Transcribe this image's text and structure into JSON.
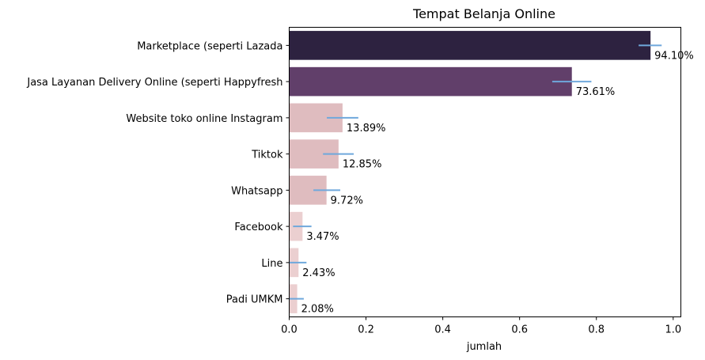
{
  "chart_data": {
    "type": "bar",
    "orientation": "horizontal",
    "title": "Tempat Belanja Online",
    "xlabel": "jumlah",
    "ylabel": "",
    "xlim": [
      0,
      1.02
    ],
    "xticks": [
      "0.0",
      "0.2",
      "0.4",
      "0.6",
      "0.8",
      "1.0"
    ],
    "grid": false,
    "categories": [
      "Marketplace (seperti Lazada",
      "Jasa Layanan Delivery Online (seperti Happyfresh",
      "Website toko online Instagram",
      "Tiktok",
      "Whatsapp",
      "Facebook",
      "Line",
      "Padi UMKM"
    ],
    "values": [
      0.941,
      0.7361,
      0.1389,
      0.1285,
      0.0972,
      0.0347,
      0.0243,
      0.0208
    ],
    "data_labels": [
      "94.10%",
      "73.61%",
      "13.89%",
      "12.85%",
      "9.72%",
      "3.47%",
      "2.43%",
      "2.08%"
    ],
    "error_bars": [
      [
        0.91,
        0.97
      ],
      [
        0.685,
        0.787
      ],
      [
        0.098,
        0.18
      ],
      [
        0.088,
        0.168
      ],
      [
        0.063,
        0.133
      ],
      [
        0.01,
        0.058
      ],
      [
        0.0,
        0.045
      ],
      [
        0.0,
        0.038
      ]
    ],
    "bar_colors": [
      "#2d2240",
      "#613f6a",
      "#dfbcbf",
      "#dfbcbf",
      "#dfbcbf",
      "#ebcfd0",
      "#ebcfd0",
      "#ebcfd0"
    ],
    "error_color": "#6fa8dc"
  }
}
